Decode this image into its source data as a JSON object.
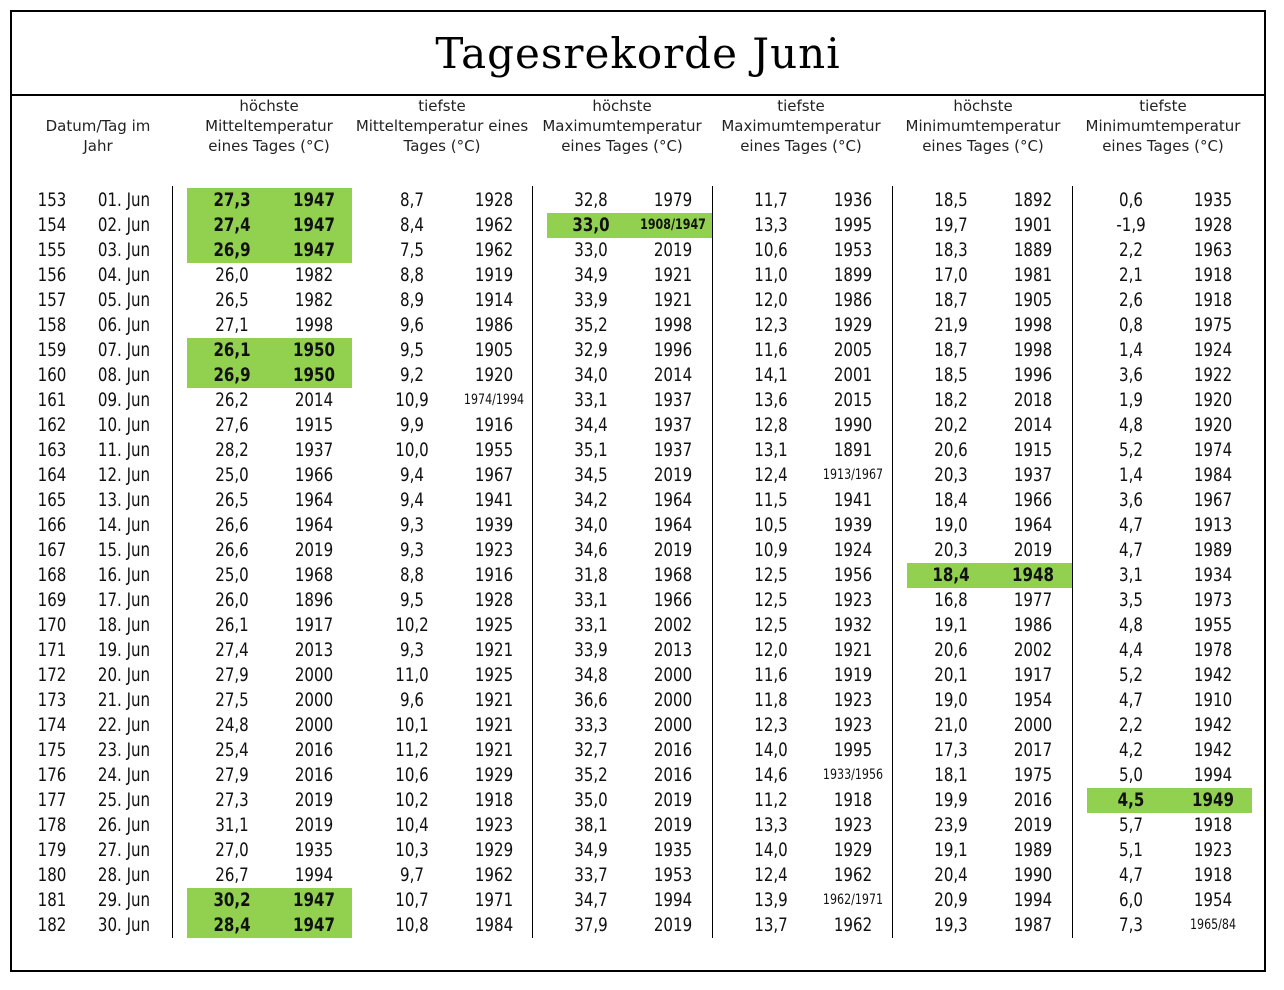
{
  "title": "Tagesrekorde Juni",
  "headers": [
    "Datum/Tag im Jahr",
    "höchste Mitteltemperatur eines Tages (°C)",
    "tiefste Mitteltemperatur eines Tages (°C)",
    "höchste Maximumtemperatur eines Tages (°C)",
    "tiefste Maximumtemperatur eines Tages (°C)",
    "höchste Minimumtemperatur eines Tages (°C)",
    "tiefste Minimumtemperatur eines Tages (°C)"
  ],
  "highlight_color": "#92d050",
  "rows": [
    {
      "day": "153",
      "date": "01. Jun",
      "values": [
        [
          "27,3",
          "1947"
        ],
        [
          "8,7",
          "1928"
        ],
        [
          "32,8",
          "1979"
        ],
        [
          "11,7",
          "1936"
        ],
        [
          "18,5",
          "1892"
        ],
        [
          "0,6",
          "1935"
        ]
      ],
      "hl": [
        true,
        false,
        false,
        false,
        false,
        false
      ]
    },
    {
      "day": "154",
      "date": "02. Jun",
      "values": [
        [
          "27,4",
          "1947"
        ],
        [
          "8,4",
          "1962"
        ],
        [
          "33,0",
          "1908/1947"
        ],
        [
          "13,3",
          "1995"
        ],
        [
          "19,7",
          "1901"
        ],
        [
          "-1,9",
          "1928"
        ]
      ],
      "hl": [
        true,
        false,
        true,
        false,
        false,
        false
      ]
    },
    {
      "day": "155",
      "date": "03. Jun",
      "values": [
        [
          "26,9",
          "1947"
        ],
        [
          "7,5",
          "1962"
        ],
        [
          "33,0",
          "2019"
        ],
        [
          "10,6",
          "1953"
        ],
        [
          "18,3",
          "1889"
        ],
        [
          "2,2",
          "1963"
        ]
      ],
      "hl": [
        true,
        false,
        false,
        false,
        false,
        false
      ]
    },
    {
      "day": "156",
      "date": "04. Jun",
      "values": [
        [
          "26,0",
          "1982"
        ],
        [
          "8,8",
          "1919"
        ],
        [
          "34,9",
          "1921"
        ],
        [
          "11,0",
          "1899"
        ],
        [
          "17,0",
          "1981"
        ],
        [
          "2,1",
          "1918"
        ]
      ],
      "hl": [
        false,
        false,
        false,
        false,
        false,
        false
      ]
    },
    {
      "day": "157",
      "date": "05. Jun",
      "values": [
        [
          "26,5",
          "1982"
        ],
        [
          "8,9",
          "1914"
        ],
        [
          "33,9",
          "1921"
        ],
        [
          "12,0",
          "1986"
        ],
        [
          "18,7",
          "1905"
        ],
        [
          "2,6",
          "1918"
        ]
      ],
      "hl": [
        false,
        false,
        false,
        false,
        false,
        false
      ]
    },
    {
      "day": "158",
      "date": "06. Jun",
      "values": [
        [
          "27,1",
          "1998"
        ],
        [
          "9,6",
          "1986"
        ],
        [
          "35,2",
          "1998"
        ],
        [
          "12,3",
          "1929"
        ],
        [
          "21,9",
          "1998"
        ],
        [
          "0,8",
          "1975"
        ]
      ],
      "hl": [
        false,
        false,
        false,
        false,
        false,
        false
      ]
    },
    {
      "day": "159",
      "date": "07. Jun",
      "values": [
        [
          "26,1",
          "1950"
        ],
        [
          "9,5",
          "1905"
        ],
        [
          "32,9",
          "1996"
        ],
        [
          "11,6",
          "2005"
        ],
        [
          "18,7",
          "1998"
        ],
        [
          "1,4",
          "1924"
        ]
      ],
      "hl": [
        true,
        false,
        false,
        false,
        false,
        false
      ]
    },
    {
      "day": "160",
      "date": "08. Jun",
      "values": [
        [
          "26,9",
          "1950"
        ],
        [
          "9,2",
          "1920"
        ],
        [
          "34,0",
          "2014"
        ],
        [
          "14,1",
          "2001"
        ],
        [
          "18,5",
          "1996"
        ],
        [
          "3,6",
          "1922"
        ]
      ],
      "hl": [
        true,
        false,
        false,
        false,
        false,
        false
      ]
    },
    {
      "day": "161",
      "date": "09. Jun",
      "values": [
        [
          "26,2",
          "2014"
        ],
        [
          "10,9",
          "1974/1994"
        ],
        [
          "33,1",
          "1937"
        ],
        [
          "13,6",
          "2015"
        ],
        [
          "18,2",
          "2018"
        ],
        [
          "1,9",
          "1920"
        ]
      ],
      "hl": [
        false,
        false,
        false,
        false,
        false,
        false
      ]
    },
    {
      "day": "162",
      "date": "10. Jun",
      "values": [
        [
          "27,6",
          "1915"
        ],
        [
          "9,9",
          "1916"
        ],
        [
          "34,4",
          "1937"
        ],
        [
          "12,8",
          "1990"
        ],
        [
          "20,2",
          "2014"
        ],
        [
          "4,8",
          "1920"
        ]
      ],
      "hl": [
        false,
        false,
        false,
        false,
        false,
        false
      ]
    },
    {
      "day": "163",
      "date": "11. Jun",
      "values": [
        [
          "28,2",
          "1937"
        ],
        [
          "10,0",
          "1955"
        ],
        [
          "35,1",
          "1937"
        ],
        [
          "13,1",
          "1891"
        ],
        [
          "20,6",
          "1915"
        ],
        [
          "5,2",
          "1974"
        ]
      ],
      "hl": [
        false,
        false,
        false,
        false,
        false,
        false
      ]
    },
    {
      "day": "164",
      "date": "12. Jun",
      "values": [
        [
          "25,0",
          "1966"
        ],
        [
          "9,4",
          "1967"
        ],
        [
          "34,5",
          "2019"
        ],
        [
          "12,4",
          "1913/1967"
        ],
        [
          "20,3",
          "1937"
        ],
        [
          "1,4",
          "1984"
        ]
      ],
      "hl": [
        false,
        false,
        false,
        false,
        false,
        false
      ]
    },
    {
      "day": "165",
      "date": "13. Jun",
      "values": [
        [
          "26,5",
          "1964"
        ],
        [
          "9,4",
          "1941"
        ],
        [
          "34,2",
          "1964"
        ],
        [
          "11,5",
          "1941"
        ],
        [
          "18,4",
          "1966"
        ],
        [
          "3,6",
          "1967"
        ]
      ],
      "hl": [
        false,
        false,
        false,
        false,
        false,
        false
      ]
    },
    {
      "day": "166",
      "date": "14. Jun",
      "values": [
        [
          "26,6",
          "1964"
        ],
        [
          "9,3",
          "1939"
        ],
        [
          "34,0",
          "1964"
        ],
        [
          "10,5",
          "1939"
        ],
        [
          "19,0",
          "1964"
        ],
        [
          "4,7",
          "1913"
        ]
      ],
      "hl": [
        false,
        false,
        false,
        false,
        false,
        false
      ]
    },
    {
      "day": "167",
      "date": "15. Jun",
      "values": [
        [
          "26,6",
          "2019"
        ],
        [
          "9,3",
          "1923"
        ],
        [
          "34,6",
          "2019"
        ],
        [
          "10,9",
          "1924"
        ],
        [
          "20,3",
          "2019"
        ],
        [
          "4,7",
          "1989"
        ]
      ],
      "hl": [
        false,
        false,
        false,
        false,
        false,
        false
      ]
    },
    {
      "day": "168",
      "date": "16. Jun",
      "values": [
        [
          "25,0",
          "1968"
        ],
        [
          "8,8",
          "1916"
        ],
        [
          "31,8",
          "1968"
        ],
        [
          "12,5",
          "1956"
        ],
        [
          "18,4",
          "1948"
        ],
        [
          "3,1",
          "1934"
        ]
      ],
      "hl": [
        false,
        false,
        false,
        false,
        true,
        false
      ]
    },
    {
      "day": "169",
      "date": "17. Jun",
      "values": [
        [
          "26,0",
          "1896"
        ],
        [
          "9,5",
          "1928"
        ],
        [
          "33,1",
          "1966"
        ],
        [
          "12,5",
          "1923"
        ],
        [
          "16,8",
          "1977"
        ],
        [
          "3,5",
          "1973"
        ]
      ],
      "hl": [
        false,
        false,
        false,
        false,
        false,
        false
      ]
    },
    {
      "day": "170",
      "date": "18. Jun",
      "values": [
        [
          "26,1",
          "1917"
        ],
        [
          "10,2",
          "1925"
        ],
        [
          "33,1",
          "2002"
        ],
        [
          "12,5",
          "1932"
        ],
        [
          "19,1",
          "1986"
        ],
        [
          "4,8",
          "1955"
        ]
      ],
      "hl": [
        false,
        false,
        false,
        false,
        false,
        false
      ]
    },
    {
      "day": "171",
      "date": "19. Jun",
      "values": [
        [
          "27,4",
          "2013"
        ],
        [
          "9,3",
          "1921"
        ],
        [
          "33,9",
          "2013"
        ],
        [
          "12,0",
          "1921"
        ],
        [
          "20,6",
          "2002"
        ],
        [
          "4,4",
          "1978"
        ]
      ],
      "hl": [
        false,
        false,
        false,
        false,
        false,
        false
      ]
    },
    {
      "day": "172",
      "date": "20. Jun",
      "values": [
        [
          "27,9",
          "2000"
        ],
        [
          "11,0",
          "1925"
        ],
        [
          "34,8",
          "2000"
        ],
        [
          "11,6",
          "1919"
        ],
        [
          "20,1",
          "1917"
        ],
        [
          "5,2",
          "1942"
        ]
      ],
      "hl": [
        false,
        false,
        false,
        false,
        false,
        false
      ]
    },
    {
      "day": "173",
      "date": "21. Jun",
      "values": [
        [
          "27,5",
          "2000"
        ],
        [
          "9,6",
          "1921"
        ],
        [
          "36,6",
          "2000"
        ],
        [
          "11,8",
          "1923"
        ],
        [
          "19,0",
          "1954"
        ],
        [
          "4,7",
          "1910"
        ]
      ],
      "hl": [
        false,
        false,
        false,
        false,
        false,
        false
      ]
    },
    {
      "day": "174",
      "date": "22. Jun",
      "values": [
        [
          "24,8",
          "2000"
        ],
        [
          "10,1",
          "1921"
        ],
        [
          "33,3",
          "2000"
        ],
        [
          "12,3",
          "1923"
        ],
        [
          "21,0",
          "2000"
        ],
        [
          "2,2",
          "1942"
        ]
      ],
      "hl": [
        false,
        false,
        false,
        false,
        false,
        false
      ]
    },
    {
      "day": "175",
      "date": "23. Jun",
      "values": [
        [
          "25,4",
          "2016"
        ],
        [
          "11,2",
          "1921"
        ],
        [
          "32,7",
          "2016"
        ],
        [
          "14,0",
          "1995"
        ],
        [
          "17,3",
          "2017"
        ],
        [
          "4,2",
          "1942"
        ]
      ],
      "hl": [
        false,
        false,
        false,
        false,
        false,
        false
      ]
    },
    {
      "day": "176",
      "date": "24. Jun",
      "values": [
        [
          "27,9",
          "2016"
        ],
        [
          "10,6",
          "1929"
        ],
        [
          "35,2",
          "2016"
        ],
        [
          "14,6",
          "1933/1956"
        ],
        [
          "18,1",
          "1975"
        ],
        [
          "5,0",
          "1994"
        ]
      ],
      "hl": [
        false,
        false,
        false,
        false,
        false,
        false
      ]
    },
    {
      "day": "177",
      "date": "25. Jun",
      "values": [
        [
          "27,3",
          "2019"
        ],
        [
          "10,2",
          "1918"
        ],
        [
          "35,0",
          "2019"
        ],
        [
          "11,2",
          "1918"
        ],
        [
          "19,9",
          "2016"
        ],
        [
          "4,5",
          "1949"
        ]
      ],
      "hl": [
        false,
        false,
        false,
        false,
        false,
        true
      ]
    },
    {
      "day": "178",
      "date": "26. Jun",
      "values": [
        [
          "31,1",
          "2019"
        ],
        [
          "10,4",
          "1923"
        ],
        [
          "38,1",
          "2019"
        ],
        [
          "13,3",
          "1923"
        ],
        [
          "23,9",
          "2019"
        ],
        [
          "5,7",
          "1918"
        ]
      ],
      "hl": [
        false,
        false,
        false,
        false,
        false,
        false
      ]
    },
    {
      "day": "179",
      "date": "27. Jun",
      "values": [
        [
          "27,0",
          "1935"
        ],
        [
          "10,3",
          "1929"
        ],
        [
          "34,9",
          "1935"
        ],
        [
          "14,0",
          "1929"
        ],
        [
          "19,1",
          "1989"
        ],
        [
          "5,1",
          "1923"
        ]
      ],
      "hl": [
        false,
        false,
        false,
        false,
        false,
        false
      ]
    },
    {
      "day": "180",
      "date": "28. Jun",
      "values": [
        [
          "26,7",
          "1994"
        ],
        [
          "9,7",
          "1962"
        ],
        [
          "33,7",
          "1953"
        ],
        [
          "12,4",
          "1962"
        ],
        [
          "20,4",
          "1990"
        ],
        [
          "4,7",
          "1918"
        ]
      ],
      "hl": [
        false,
        false,
        false,
        false,
        false,
        false
      ]
    },
    {
      "day": "181",
      "date": "29. Jun",
      "values": [
        [
          "30,2",
          "1947"
        ],
        [
          "10,7",
          "1971"
        ],
        [
          "34,7",
          "1994"
        ],
        [
          "13,9",
          "1962/1971"
        ],
        [
          "20,9",
          "1994"
        ],
        [
          "6,0",
          "1954"
        ]
      ],
      "hl": [
        true,
        false,
        false,
        false,
        false,
        false
      ]
    },
    {
      "day": "182",
      "date": "30. Jun",
      "values": [
        [
          "28,4",
          "1947"
        ],
        [
          "10,8",
          "1984"
        ],
        [
          "37,9",
          "2019"
        ],
        [
          "13,7",
          "1962"
        ],
        [
          "19,3",
          "1987"
        ],
        [
          "7,3",
          "1965/84"
        ]
      ],
      "hl": [
        true,
        false,
        false,
        false,
        false,
        false
      ]
    }
  ]
}
